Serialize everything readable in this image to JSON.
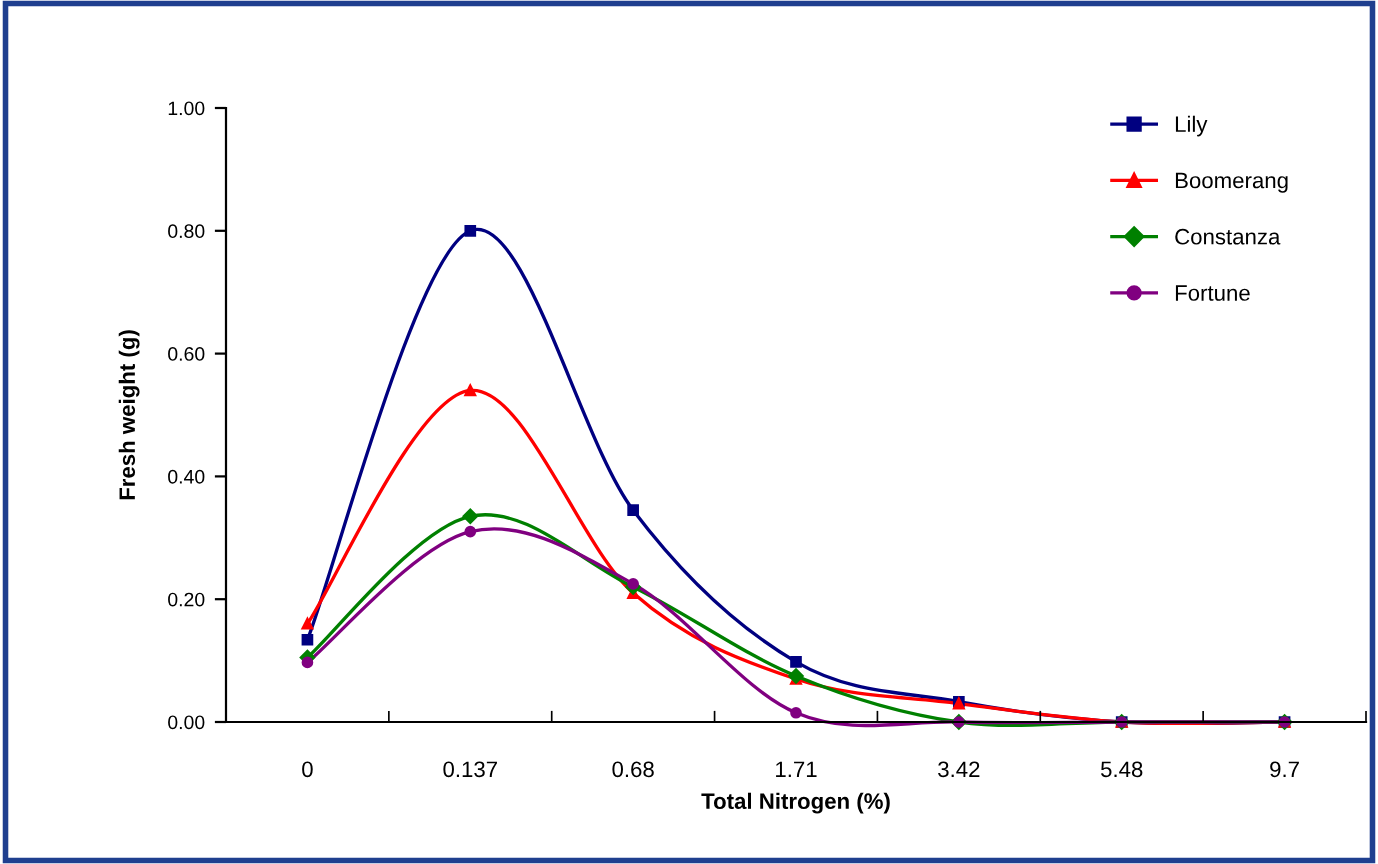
{
  "chart_data": {
    "type": "line",
    "xlabel": "Total Nitrogen (%)",
    "ylabel": "Fresh weight (g)",
    "categories": [
      "0",
      "0.137",
      "0.68",
      "1.71",
      "3.42",
      "5.48",
      "9.7"
    ],
    "series": [
      {
        "name": "Lily",
        "color": "#000080",
        "marker": "square",
        "values": [
          0.134,
          0.8,
          0.345,
          0.098,
          0.033,
          0,
          0
        ]
      },
      {
        "name": "Boomerang",
        "color": "#ff0000",
        "marker": "triangle",
        "values": [
          0.16,
          0.54,
          0.21,
          0.07,
          0.03,
          0,
          0
        ]
      },
      {
        "name": "Constanza",
        "color": "#008000",
        "marker": "diamond",
        "values": [
          0.105,
          0.335,
          0.22,
          0.075,
          0,
          0,
          0
        ]
      },
      {
        "name": "Fortune",
        "color": "#800080",
        "marker": "circle",
        "values": [
          0.097,
          0.31,
          0.225,
          0.015,
          0,
          0,
          0
        ]
      }
    ],
    "ylim": [
      0,
      1
    ],
    "yticks": [
      {
        "value": 0,
        "label": "0.00"
      },
      {
        "value": 0.2,
        "label": "0.20"
      },
      {
        "value": 0.4,
        "label": "0.40"
      },
      {
        "value": 0.6,
        "label": "0.60"
      },
      {
        "value": 0.8,
        "label": "0.80"
      },
      {
        "value": 1,
        "label": "1.00"
      }
    ],
    "grid": false,
    "legend": "top right",
    "line_style": "solid"
  }
}
